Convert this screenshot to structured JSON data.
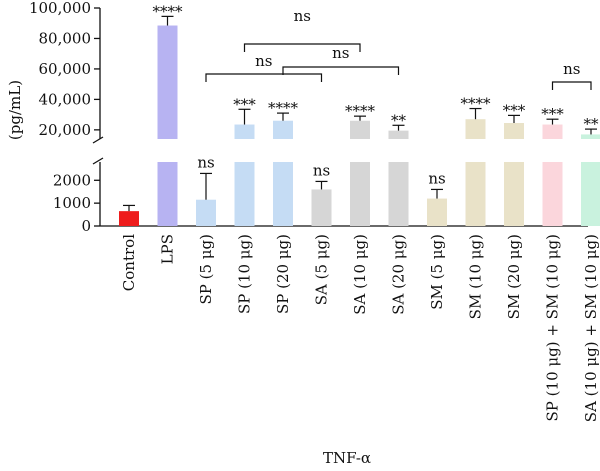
{
  "chart_data": {
    "type": "bar",
    "xlabel": "TNF-α",
    "ylabel": "(pg/mL)",
    "broken_axis": {
      "lower_range": [
        0,
        2800
      ],
      "upper_range": [
        14000,
        100000
      ]
    },
    "lower_ticks": [
      {
        "value": 0,
        "label": "0"
      },
      {
        "value": 1000,
        "label": "1000"
      },
      {
        "value": 2000,
        "label": "2000"
      }
    ],
    "upper_ticks": [
      {
        "value": 20000,
        "label": "20,000"
      },
      {
        "value": 40000,
        "label": "40,000"
      },
      {
        "value": 60000,
        "label": "60,000"
      },
      {
        "value": 80000,
        "label": "80,000"
      },
      {
        "value": 100000,
        "label": "100,000"
      }
    ],
    "categories": [
      "Control",
      "LPS",
      "SP (5 μg)",
      "SP (10 μg)",
      "SP (20 μg)",
      "SA (5 μg)",
      "SA (10 μg)",
      "SA (20 μg)",
      "SM (5 μg)",
      "SM (10 μg)",
      "SM (20 μg)",
      "SP (10 μg) + SM (10 μg)",
      "SA (10 μg) + SM (10 μg)"
    ],
    "values": [
      650,
      88500,
      1150,
      23500,
      26000,
      1600,
      26000,
      19500,
      1200,
      27000,
      24500,
      23500,
      17000
    ],
    "errors": [
      250,
      6000,
      1150,
      10000,
      5000,
      350,
      3000,
      3500,
      400,
      7000,
      5000,
      3500,
      3500
    ],
    "colors": [
      "#ee1c1c",
      "#b7b3f2",
      "#c5dcf4",
      "#c5dcf4",
      "#c5dcf4",
      "#d6d6d6",
      "#d6d6d6",
      "#d6d6d6",
      "#e9e2c8",
      "#e9e2c8",
      "#e9e2c8",
      "#fbd6dc",
      "#c9f2de"
    ],
    "significance": [
      "",
      "****",
      "ns",
      "***",
      "****",
      "ns",
      "****",
      "**",
      "ns",
      "****",
      "***",
      "***",
      "**"
    ],
    "comparisons": [
      {
        "from": 2,
        "to": 5,
        "label": "ns"
      },
      {
        "from": 3,
        "to": 6,
        "label": "ns"
      },
      {
        "from": 4,
        "to": 7,
        "label": "ns"
      },
      {
        "from": 11,
        "to": 12,
        "label": "ns"
      }
    ]
  }
}
